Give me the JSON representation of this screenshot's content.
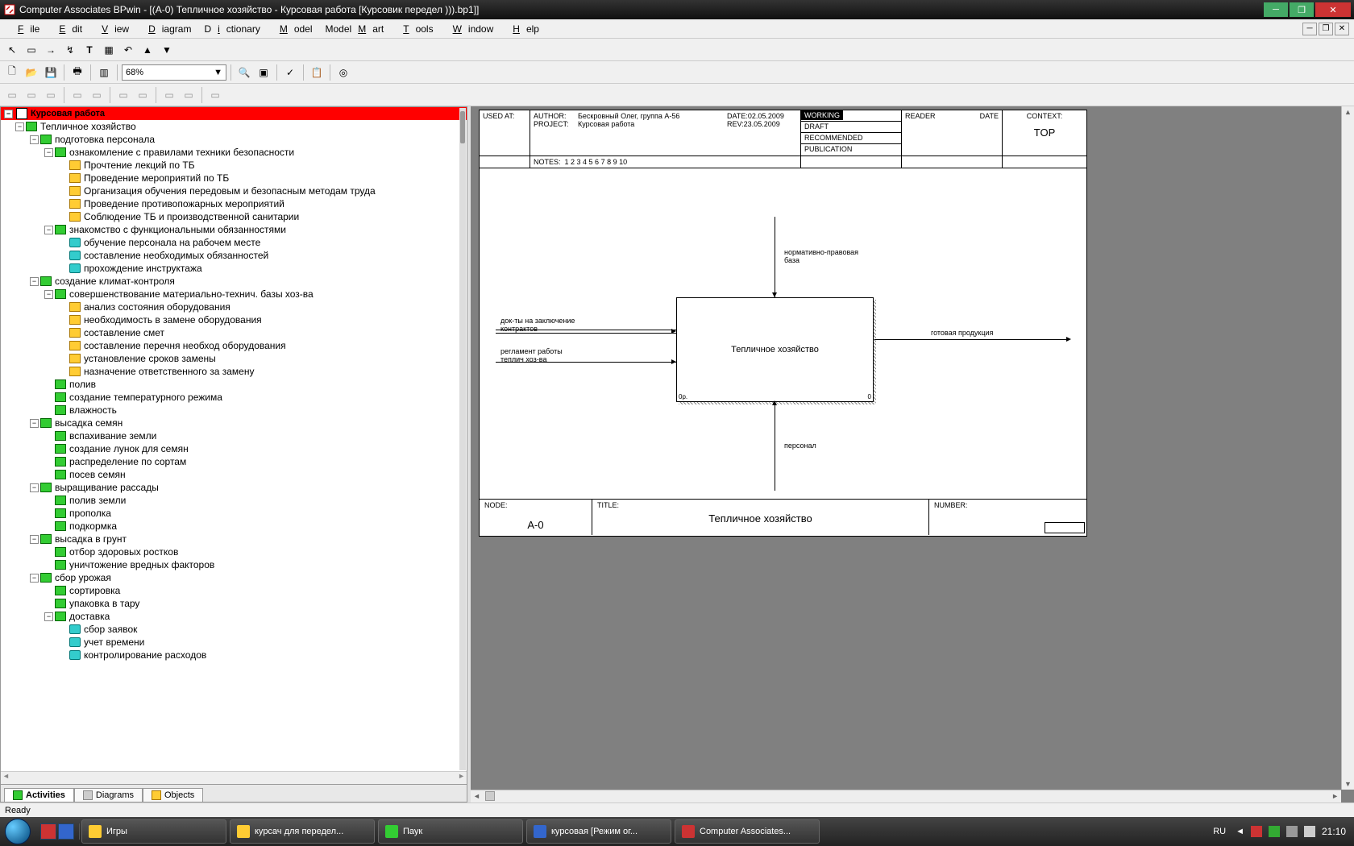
{
  "window": {
    "title": "Computer Associates BPwin - [(A-0) Тепличное хозяйство - Курсовая работа  [Курсовик передел ))).bp1]]"
  },
  "menu": {
    "items": [
      "File",
      "Edit",
      "View",
      "Diagram",
      "Dictionary",
      "Model",
      "ModelMart",
      "Tools",
      "Window",
      "Help"
    ]
  },
  "zoom": "68%",
  "tree": {
    "root": "Курсовая работа",
    "items": [
      {
        "indent": 1,
        "exp": "-",
        "icon": "green",
        "label": "Тепличное хозяйство"
      },
      {
        "indent": 2,
        "exp": "-",
        "icon": "green",
        "label": "подготовка персонала"
      },
      {
        "indent": 3,
        "exp": "-",
        "icon": "green",
        "label": "ознакомление с правилами техники безопасности"
      },
      {
        "indent": 4,
        "exp": "",
        "icon": "yellow",
        "label": "Прочтение лекций  по ТБ"
      },
      {
        "indent": 4,
        "exp": "",
        "icon": "yellow",
        "label": "Проведение мероприятий по ТБ"
      },
      {
        "indent": 4,
        "exp": "",
        "icon": "yellow",
        "label": "Организация обучения  передовым и безопасным методам труда"
      },
      {
        "indent": 4,
        "exp": "",
        "icon": "yellow",
        "label": "Проведение  противопожарных мероприятий"
      },
      {
        "indent": 4,
        "exp": "",
        "icon": "yellow",
        "label": "Соблюдение ТБ и  производственной санитарии"
      },
      {
        "indent": 3,
        "exp": "-",
        "icon": "green",
        "label": "знакомство с  функциональными обязанностями"
      },
      {
        "indent": 4,
        "exp": "",
        "icon": "cyan",
        "label": "обучение персонала на рабочем месте"
      },
      {
        "indent": 4,
        "exp": "",
        "icon": "cyan",
        "label": "составление необходимых обязанностей"
      },
      {
        "indent": 4,
        "exp": "",
        "icon": "cyan",
        "label": "прохождение инструктажа"
      },
      {
        "indent": 2,
        "exp": "-",
        "icon": "green",
        "label": "создание климат-контроля"
      },
      {
        "indent": 3,
        "exp": "-",
        "icon": "green",
        "label": "совершенствование  материально-технич. базы хоз-ва"
      },
      {
        "indent": 4,
        "exp": "",
        "icon": "yellow",
        "label": "анализ состояния оборудования"
      },
      {
        "indent": 4,
        "exp": "",
        "icon": "yellow",
        "label": "необходимость в замене оборудования"
      },
      {
        "indent": 4,
        "exp": "",
        "icon": "yellow",
        "label": "составление смет"
      },
      {
        "indent": 4,
        "exp": "",
        "icon": "yellow",
        "label": "составление перечня необход оборудования"
      },
      {
        "indent": 4,
        "exp": "",
        "icon": "yellow",
        "label": "установление сроков замены"
      },
      {
        "indent": 4,
        "exp": "",
        "icon": "yellow",
        "label": "назначение ответственного за замену"
      },
      {
        "indent": 3,
        "exp": "",
        "icon": "green",
        "label": "полив"
      },
      {
        "indent": 3,
        "exp": "",
        "icon": "green",
        "label": "создание  температурного режима"
      },
      {
        "indent": 3,
        "exp": "",
        "icon": "green",
        "label": "влажность"
      },
      {
        "indent": 2,
        "exp": "-",
        "icon": "green",
        "label": "высадка семян"
      },
      {
        "indent": 3,
        "exp": "",
        "icon": "green",
        "label": "вспахивание земли"
      },
      {
        "indent": 3,
        "exp": "",
        "icon": "green",
        "label": "создание лунок  для семян"
      },
      {
        "indent": 3,
        "exp": "",
        "icon": "green",
        "label": "распределение  по сортам"
      },
      {
        "indent": 3,
        "exp": "",
        "icon": "green",
        "label": "посев семян"
      },
      {
        "indent": 2,
        "exp": "-",
        "icon": "green",
        "label": "выращивание рассады"
      },
      {
        "indent": 3,
        "exp": "",
        "icon": "green",
        "label": "полив земли"
      },
      {
        "indent": 3,
        "exp": "",
        "icon": "green",
        "label": "прополка"
      },
      {
        "indent": 3,
        "exp": "",
        "icon": "green",
        "label": "подкормка"
      },
      {
        "indent": 2,
        "exp": "-",
        "icon": "green",
        "label": "высадка в грунт"
      },
      {
        "indent": 3,
        "exp": "",
        "icon": "green",
        "label": "отбор здоровых ростков"
      },
      {
        "indent": 3,
        "exp": "",
        "icon": "green",
        "label": "уничтожение вредных  факторов"
      },
      {
        "indent": 2,
        "exp": "-",
        "icon": "green",
        "label": "сбор урожая"
      },
      {
        "indent": 3,
        "exp": "",
        "icon": "green",
        "label": "сортировка"
      },
      {
        "indent": 3,
        "exp": "",
        "icon": "green",
        "label": "упаковка в тару"
      },
      {
        "indent": 3,
        "exp": "-",
        "icon": "green",
        "label": "доставка"
      },
      {
        "indent": 4,
        "exp": "",
        "icon": "cyan",
        "label": "сбор заявок"
      },
      {
        "indent": 4,
        "exp": "",
        "icon": "cyan",
        "label": "учет времени"
      },
      {
        "indent": 4,
        "exp": "",
        "icon": "cyan",
        "label": "контролирование расходов"
      }
    ]
  },
  "tabs": {
    "activities": "Activities",
    "diagrams": "Diagrams",
    "objects": "Objects"
  },
  "diagram": {
    "used_at": "USED AT:",
    "author_lab": "AUTHOR:",
    "author": "Бескровный Олег, группа А-56",
    "project_lab": "PROJECT:",
    "project": "Курсовая работа",
    "date_lab": "DATE:",
    "date": "02.05.2009",
    "rev_lab": "REV:",
    "rev": "23.05.2009",
    "notes_lab": "NOTES:",
    "notes": "1  2  3  4  5  6  7  8  9  10",
    "status": {
      "working": "WORKING",
      "draft": "DRAFT",
      "recommended": "RECOMMENDED",
      "publication": "PUBLICATION"
    },
    "reader": "READER",
    "reader_date": "DATE",
    "context": "CONTEXT:",
    "top": "TOP",
    "box_title": "Тепличное хозяйство",
    "box_corner_l": "0р.",
    "box_corner_r": "0",
    "arrows": {
      "top": "нормативно-правовая\nбаза",
      "left1": "док-ты на заключение\nконтрактов",
      "left2": "регламент работы\nтеплич хоз-ва",
      "right": "готовая продукция",
      "bottom": "персонал"
    },
    "node_lab": "NODE:",
    "node": "A-0",
    "title_lab": "TITLE:",
    "title": "Тепличное хозяйство",
    "number_lab": "NUMBER:"
  },
  "status": "Ready",
  "taskbar": {
    "items": [
      {
        "label": "Игры"
      },
      {
        "label": "курсач для передел..."
      },
      {
        "label": "Паук"
      },
      {
        "label": "курсовая [Режим ог..."
      },
      {
        "label": "Computer Associates..."
      }
    ],
    "lang": "RU",
    "time": "21:10"
  }
}
